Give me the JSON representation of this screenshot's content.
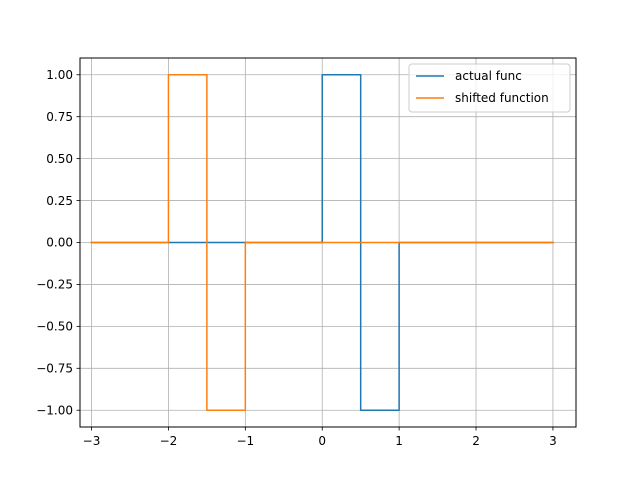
{
  "chart_data": {
    "type": "line",
    "title": "",
    "xlabel": "",
    "ylabel": "",
    "xlim": [
      -3.15,
      3.3
    ],
    "ylim": [
      -1.1,
      1.1
    ],
    "xticks": [
      -3,
      -2,
      -1,
      0,
      1,
      2,
      3
    ],
    "xtick_labels": [
      "−3",
      "−2",
      "−1",
      "0",
      "1",
      "2",
      "3"
    ],
    "yticks": [
      -1.0,
      -0.75,
      -0.5,
      -0.25,
      0.0,
      0.25,
      0.5,
      0.75,
      1.0
    ],
    "ytick_labels": [
      "−1.00",
      "−0.75",
      "−0.50",
      "−0.25",
      "0.00",
      "0.25",
      "0.50",
      "0.75",
      "1.00"
    ],
    "grid": true,
    "legend_position": "top-right",
    "series": [
      {
        "name": "actual func",
        "color": "#1f77b4",
        "x": [
          -3,
          0,
          0,
          0.5,
          0.5,
          1,
          1,
          3
        ],
        "y": [
          0,
          0,
          1,
          1,
          -1,
          -1,
          0,
          0
        ]
      },
      {
        "name": "shifted function",
        "color": "#ff7f0e",
        "x": [
          -3,
          -2,
          -2,
          -1.5,
          -1.5,
          -1,
          -1,
          3
        ],
        "y": [
          0,
          0,
          1,
          1,
          -1,
          -1,
          0,
          0
        ]
      }
    ]
  }
}
